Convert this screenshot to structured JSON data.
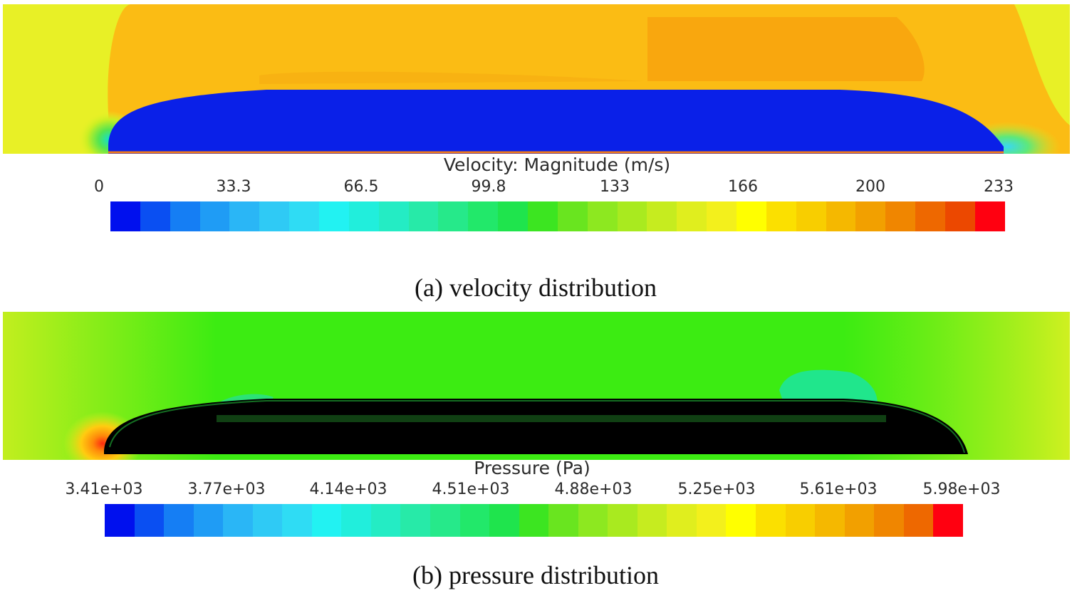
{
  "panels": [
    {
      "id": "a",
      "scale_title": "Velocity: Magnitude (m/s)",
      "ticks": [
        "0",
        "33.3",
        "66.5",
        "99.8",
        "133",
        "166",
        "200",
        "233"
      ],
      "caption": "(a) velocity distribution",
      "colorbar_colors": [
        "#0010ee",
        "#0a4ff2",
        "#157ef4",
        "#1f9cf5",
        "#2ab6f6",
        "#2fcaf5",
        "#2fdcf4",
        "#22f2f2",
        "#21eedc",
        "#24ecc4",
        "#27eaa8",
        "#26e98a",
        "#22e86a",
        "#1fe44d",
        "#3ce521",
        "#69e51f",
        "#8de820",
        "#a9ea1f",
        "#c6ec1f",
        "#e0ee1e",
        "#f3f01c",
        "#ffff00",
        "#fbe000",
        "#f8ce00",
        "#f5b800",
        "#f2a000",
        "#f08600",
        "#ee6800",
        "#ec4800",
        "#ff0010"
      ],
      "field_colors": {
        "far_field": "#e8f026",
        "upper_flow": "#fbbc14",
        "upper_core": "#f9a70e",
        "body": "#0a20e8",
        "stagnation": "#10e0d0",
        "wake": "#3ad8f0"
      }
    },
    {
      "id": "b",
      "scale_title": "Pressure (Pa)",
      "ticks": [
        "3.41e+03",
        "3.77e+03",
        "4.14e+03",
        "4.51e+03",
        "4.88e+03",
        "5.25e+03",
        "5.61e+03",
        "5.98e+03"
      ],
      "caption": "(b) pressure distribution",
      "colorbar_colors": [
        "#0010ee",
        "#0a4ff2",
        "#157ef4",
        "#1f9cf5",
        "#2ab6f6",
        "#2fcaf5",
        "#2fdcf4",
        "#22f2f2",
        "#21eedc",
        "#24ecc4",
        "#27eaa8",
        "#26e98a",
        "#22e86a",
        "#1fe44d",
        "#3ce521",
        "#69e51f",
        "#8de820",
        "#a9ea1f",
        "#c6ec1f",
        "#e0ee1e",
        "#f3f01c",
        "#ffff00",
        "#fbe000",
        "#f8ce00",
        "#f5b800",
        "#f2a000",
        "#f08600",
        "#ee6800",
        "#ff0010"
      ],
      "field_colors": {
        "far_field": "#3cec12",
        "edge_field": "#a6ee1c",
        "body": "#34e23a",
        "body_shade": "#2bc83a",
        "stagnation": "#ff2a10",
        "stagnation_halo": "#ffcc10",
        "low_zone": "#20e68c"
      }
    }
  ]
}
